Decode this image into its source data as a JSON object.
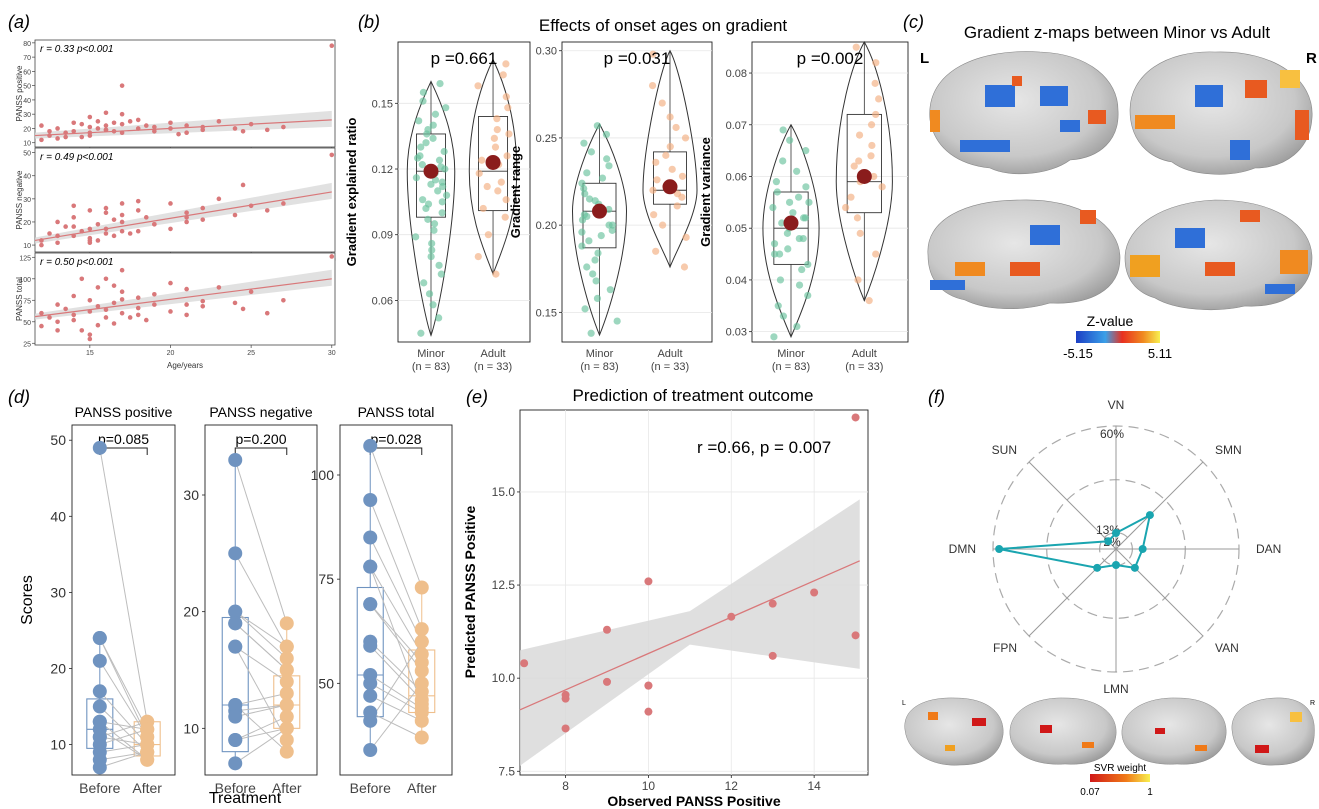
{
  "panel_labels": {
    "a": "(a)",
    "b": "(b)",
    "c": "(c)",
    "d": "(d)",
    "e": "(e)",
    "f": "(f)"
  },
  "colors": {
    "red": "#d9787a",
    "green": "#69c29c",
    "orange": "#f2ad7f",
    "dark_red": "#8a1c1c",
    "blue": "#6f93c0",
    "tan": "#efbf8c",
    "teal": "#1aa5b0"
  },
  "chart_data": [
    {
      "id": "a",
      "type": "scatter",
      "xlabel": "Age/years",
      "x_ticks": [
        15,
        20,
        25,
        30
      ],
      "xlim": [
        11.6,
        30.2
      ],
      "subplots": [
        {
          "ylabel": "PANSS positive",
          "annotation": "r = 0.33  p<0.001",
          "ylim": [
            7,
            82
          ],
          "y_ticks": [
            10,
            20,
            30,
            40,
            50,
            60,
            70,
            80
          ],
          "fit": [
            [
              11.6,
              15
            ],
            [
              30,
              26
            ]
          ],
          "x": [
            12,
            12,
            12.5,
            13,
            13,
            13.5,
            14,
            14,
            14.5,
            15,
            15,
            15,
            15.5,
            15.5,
            16,
            16,
            16.5,
            16.5,
            17,
            17,
            17,
            18,
            18,
            18.5,
            19,
            20,
            20,
            21,
            21,
            22,
            22,
            23,
            24,
            24.5,
            25,
            26,
            27,
            30,
            12.5,
            13.5,
            14.5,
            16,
            17.5,
            19,
            20.5,
            15,
            16,
            17
          ],
          "y": [
            12,
            22,
            15,
            13,
            20,
            17,
            24,
            18,
            14,
            21,
            28,
            15,
            20,
            25,
            22,
            19,
            24,
            18,
            23,
            30,
            17,
            20,
            26,
            22,
            18,
            24,
            20,
            22,
            17,
            19,
            21,
            25,
            20,
            18,
            23,
            19,
            21,
            78,
            18,
            14,
            23,
            31,
            25,
            21,
            16,
            17,
            19,
            50
          ]
        },
        {
          "ylabel": "PANSS negative",
          "annotation": "r = 0.49  p<0.001",
          "ylim": [
            7,
            52
          ],
          "y_ticks": [
            10,
            20,
            30,
            40,
            50
          ],
          "fit": [
            [
              11.6,
              12
            ],
            [
              30,
              33
            ]
          ],
          "x": [
            12,
            12,
            12.5,
            13,
            13,
            13.5,
            14,
            14,
            14.5,
            15,
            15,
            15,
            15.5,
            15.5,
            16,
            16,
            16.5,
            16.5,
            17,
            17,
            17,
            18,
            18,
            18.5,
            19,
            20,
            20,
            21,
            21,
            22,
            22,
            23,
            24,
            24.5,
            25,
            26,
            27,
            30,
            13,
            14,
            15,
            16,
            17,
            18,
            19,
            21,
            14,
            15,
            16,
            17.5
          ],
          "y": [
            10,
            12,
            15,
            11,
            20,
            18,
            14,
            22,
            16,
            13,
            17,
            25,
            19,
            12,
            26,
            15,
            21,
            14,
            20,
            28,
            23,
            16,
            25,
            22,
            19,
            17,
            28,
            24,
            20,
            26,
            21,
            30,
            23,
            36,
            27,
            25,
            28,
            49,
            14,
            18,
            11,
            24,
            16,
            29,
            19,
            22,
            27,
            12,
            17,
            15
          ]
        },
        {
          "ylabel": "PANSS total",
          "annotation": "r = 0.50  p<0.001",
          "ylim": [
            23,
            130
          ],
          "y_ticks": [
            25,
            50,
            75,
            100,
            125
          ],
          "fit": [
            [
              11.6,
              56
            ],
            [
              30,
              100
            ]
          ],
          "x": [
            12,
            12,
            12.5,
            13,
            13,
            13.5,
            14,
            14,
            14.5,
            15,
            15,
            15,
            15.5,
            15.5,
            16,
            16,
            16.5,
            16.5,
            17,
            17,
            17,
            18,
            18,
            18.5,
            19,
            20,
            20,
            21,
            21,
            22,
            22,
            23,
            24,
            24.5,
            25,
            26,
            27,
            30,
            13,
            14,
            15,
            16,
            17,
            18,
            19,
            21,
            14.5,
            15.5,
            16.5,
            17.5
          ],
          "y": [
            45,
            60,
            55,
            70,
            50,
            65,
            58,
            80,
            40,
            62,
            75,
            35,
            68,
            90,
            55,
            100,
            72,
            48,
            85,
            60,
            110,
            66,
            78,
            52,
            70,
            95,
            62,
            88,
            58,
            74,
            68,
            90,
            72,
            65,
            85,
            60,
            75,
            126,
            40,
            52,
            30,
            64,
            76,
            58,
            82,
            70,
            100,
            46,
            92,
            55
          ]
        }
      ]
    },
    {
      "id": "b",
      "type": "violin",
      "title": "Effects of onset ages on gradient",
      "categories": [
        "Minor",
        "Adult"
      ],
      "category_n": [
        "(n = 83)",
        "(n = 33)"
      ],
      "subplots": [
        {
          "ylabel": "Gradient explained ratio",
          "p_label": "p =0.661",
          "ylim": [
            0.041,
            0.178
          ],
          "y_ticks": [
            0.06,
            0.09,
            0.12,
            0.15
          ],
          "tick_format": "0.00",
          "groups": [
            {
              "name": "Minor",
              "q1": 0.098,
              "median": 0.119,
              "q3": 0.136,
              "mean": 0.119,
              "min": 0.044,
              "max": 0.16,
              "points": [
                0.045,
                0.052,
                0.058,
                0.063,
                0.068,
                0.072,
                0.076,
                0.08,
                0.083,
                0.086,
                0.089,
                0.092,
                0.095,
                0.097,
                0.1,
                0.102,
                0.104,
                0.106,
                0.108,
                0.11,
                0.112,
                0.114,
                0.116,
                0.118,
                0.12,
                0.122,
                0.124,
                0.126,
                0.128,
                0.13,
                0.132,
                0.134,
                0.136,
                0.138,
                0.14,
                0.142,
                0.145,
                0.148,
                0.151,
                0.155,
                0.159,
                0.105,
                0.115,
                0.125,
                0.113,
                0.121
              ]
            },
            {
              "name": "Adult",
              "q1": 0.101,
              "median": 0.119,
              "q3": 0.144,
              "mean": 0.123,
              "min": 0.072,
              "max": 0.17,
              "points": [
                0.072,
                0.08,
                0.09,
                0.098,
                0.102,
                0.106,
                0.11,
                0.114,
                0.118,
                0.122,
                0.126,
                0.13,
                0.134,
                0.138,
                0.143,
                0.148,
                0.153,
                0.158,
                0.163,
                0.168,
                0.112,
                0.124,
                0.136
              ]
            }
          ]
        },
        {
          "ylabel": "Gradient range",
          "p_label": "p =0.031",
          "ylim": [
            0.133,
            0.305
          ],
          "y_ticks": [
            0.15,
            0.2,
            0.25,
            0.3
          ],
          "tick_format": "0.00",
          "groups": [
            {
              "name": "Minor",
              "q1": 0.187,
              "median": 0.208,
              "q3": 0.224,
              "mean": 0.208,
              "min": 0.137,
              "max": 0.258,
              "points": [
                0.138,
                0.145,
                0.152,
                0.158,
                0.163,
                0.168,
                0.172,
                0.176,
                0.18,
                0.184,
                0.188,
                0.191,
                0.194,
                0.197,
                0.2,
                0.203,
                0.206,
                0.209,
                0.212,
                0.215,
                0.218,
                0.221,
                0.224,
                0.227,
                0.23,
                0.234,
                0.238,
                0.242,
                0.247,
                0.252,
                0.257,
                0.196,
                0.205,
                0.214,
                0.2
              ]
            },
            {
              "name": "Adult",
              "q1": 0.212,
              "median": 0.22,
              "q3": 0.242,
              "mean": 0.222,
              "min": 0.176,
              "max": 0.3,
              "points": [
                0.176,
                0.185,
                0.193,
                0.2,
                0.206,
                0.211,
                0.216,
                0.22,
                0.224,
                0.228,
                0.232,
                0.236,
                0.24,
                0.245,
                0.25,
                0.256,
                0.262,
                0.27,
                0.28,
                0.298,
                0.218,
                0.226
              ]
            }
          ]
        },
        {
          "ylabel": "Gradient variance",
          "p_label": "p =0.002",
          "ylim": [
            0.028,
            0.086
          ],
          "y_ticks": [
            0.03,
            0.04,
            0.05,
            0.06,
            0.07,
            0.08
          ],
          "tick_format": "0.00",
          "groups": [
            {
              "name": "Minor",
              "q1": 0.043,
              "median": 0.05,
              "q3": 0.057,
              "mean": 0.051,
              "min": 0.029,
              "max": 0.07,
              "points": [
                0.029,
                0.031,
                0.033,
                0.035,
                0.037,
                0.039,
                0.04,
                0.042,
                0.043,
                0.045,
                0.046,
                0.047,
                0.048,
                0.049,
                0.05,
                0.051,
                0.052,
                0.053,
                0.054,
                0.055,
                0.056,
                0.057,
                0.058,
                0.059,
                0.061,
                0.063,
                0.065,
                0.067,
                0.069,
                0.048,
                0.052,
                0.045,
                0.055
              ]
            },
            {
              "name": "Adult",
              "q1": 0.053,
              "median": 0.059,
              "q3": 0.072,
              "mean": 0.06,
              "min": 0.036,
              "max": 0.086,
              "points": [
                0.036,
                0.04,
                0.045,
                0.049,
                0.052,
                0.054,
                0.056,
                0.058,
                0.06,
                0.062,
                0.064,
                0.066,
                0.068,
                0.07,
                0.072,
                0.075,
                0.078,
                0.082,
                0.085,
                0.059,
                0.063
              ]
            }
          ]
        }
      ]
    },
    {
      "id": "d",
      "type": "paired",
      "xlabel": "Treatment",
      "ylabel": "Scores",
      "categories": [
        "Before",
        "After"
      ],
      "subplots": [
        {
          "title": "PANSS positive",
          "p_label": "p=0.085",
          "ylim": [
            6,
            52
          ],
          "y_ticks": [
            10,
            20,
            30,
            40,
            50
          ],
          "before": [
            49,
            24,
            21,
            17,
            15,
            13,
            12,
            11,
            10,
            9,
            7,
            24,
            8,
            13,
            11
          ],
          "after": [
            13,
            12,
            11,
            10,
            9,
            8,
            8,
            13,
            12,
            10,
            9,
            11,
            9,
            12,
            10
          ],
          "before_box": {
            "q1": 9.5,
            "median": 12,
            "q3": 16,
            "min": 7,
            "max": 24
          },
          "after_box": {
            "q1": 8.5,
            "median": 10,
            "q3": 13,
            "min": 7.5,
            "max": 13
          }
        },
        {
          "title": "PANSS negative",
          "p_label": "p=0.200",
          "ylim": [
            6,
            36
          ],
          "y_ticks": [
            10,
            20,
            30
          ],
          "before": [
            33,
            25,
            20,
            19,
            17,
            12,
            11.5,
            9,
            7,
            17,
            12,
            20,
            11,
            9,
            19
          ],
          "after": [
            19,
            17,
            16,
            15,
            14,
            13,
            12,
            11,
            10,
            9,
            8,
            17,
            12,
            10,
            15
          ],
          "before_box": {
            "q1": 8,
            "median": 12,
            "q3": 19.5,
            "min": 7,
            "max": 33
          },
          "after_box": {
            "q1": 10,
            "median": 12,
            "q3": 14.5,
            "min": 8,
            "max": 19
          }
        },
        {
          "title": "PANSS total",
          "p_label": "p=0.028",
          "ylim": [
            28,
            112
          ],
          "y_ticks": [
            50,
            75,
            100
          ],
          "before": [
            107,
            94,
            85,
            78,
            69,
            60,
            59,
            52,
            50,
            47,
            43,
            41,
            34,
            69,
            78
          ],
          "after": [
            73,
            63,
            60,
            57,
            53,
            48,
            46,
            44,
            43,
            41,
            37,
            60,
            50,
            55,
            45
          ],
          "before_box": {
            "q1": 42,
            "median": 52,
            "q3": 73,
            "min": 34,
            "max": 107
          },
          "after_box": {
            "q1": 43,
            "median": 47,
            "q3": 58,
            "min": 37,
            "max": 73
          }
        }
      ]
    },
    {
      "id": "e",
      "type": "scatter",
      "title": "Prediction of treatment outcome",
      "annotation": "r =0.66,  p = 0.007",
      "xlabel": "Observed PANSS Positive",
      "ylabel": "Predicted PANSS Positive",
      "xlim": [
        6.9,
        15.3
      ],
      "ylim": [
        7.4,
        17.2
      ],
      "x_ticks": [
        8,
        10,
        12,
        14
      ],
      "y_ticks": [
        7.5,
        10.0,
        12.5,
        15.0
      ],
      "x": [
        7,
        8,
        8,
        8,
        9,
        9,
        10,
        10,
        10,
        10,
        12,
        13,
        13,
        14,
        15,
        15
      ],
      "y": [
        10.4,
        9.55,
        9.45,
        8.65,
        11.3,
        9.9,
        12.6,
        9.8,
        9.1,
        9.8,
        11.65,
        12.0,
        10.6,
        12.3,
        11.15,
        17.0
      ],
      "fit": [
        [
          6.9,
          9.15
        ],
        [
          15.1,
          13.15
        ]
      ]
    },
    {
      "id": "f",
      "type": "radar",
      "axes": [
        "VN",
        "SMN",
        "DAN",
        "VAN",
        "LMN",
        "FPN",
        "DMN",
        "SUN"
      ],
      "values": [
        0.03,
        0.09,
        0.05,
        0.05,
        0.03,
        0.05,
        0.57,
        0.02
      ],
      "ring_labels": [
        "60%",
        "13%",
        "2%"
      ],
      "rings": [
        0.6,
        0.13,
        0.02
      ]
    }
  ],
  "brain_maps": {
    "title": "Gradient z-maps between Minor vs Adult",
    "left_label": "L",
    "right_label": "R",
    "colorbar_title": "Z-value",
    "colorbar_min": "-5.15",
    "colorbar_max": "5.11"
  },
  "svr_map": {
    "colorbar_title": "SVR weight",
    "colorbar_min": "0.07",
    "colorbar_max": "1",
    "left_label": "L",
    "right_label": "R"
  }
}
